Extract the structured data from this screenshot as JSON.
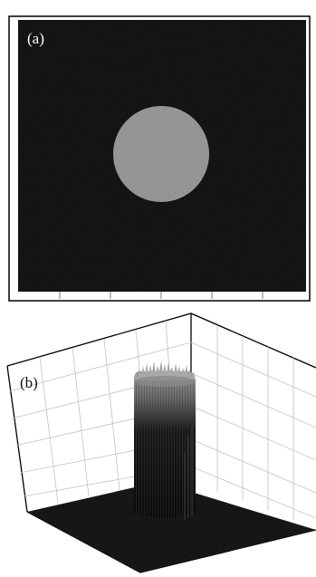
{
  "panels": [
    {
      "id": "a",
      "label": "(a)",
      "label_color": "#ffffff"
    },
    {
      "id": "b",
      "label": "(b)",
      "label_color": "#111111"
    }
  ],
  "colors": {
    "background": "#ffffff",
    "field_dark": "#111111",
    "disk_gray": "#8c8c8c",
    "grid_line": "#bdbdbd",
    "frame": "#000000"
  }
}
